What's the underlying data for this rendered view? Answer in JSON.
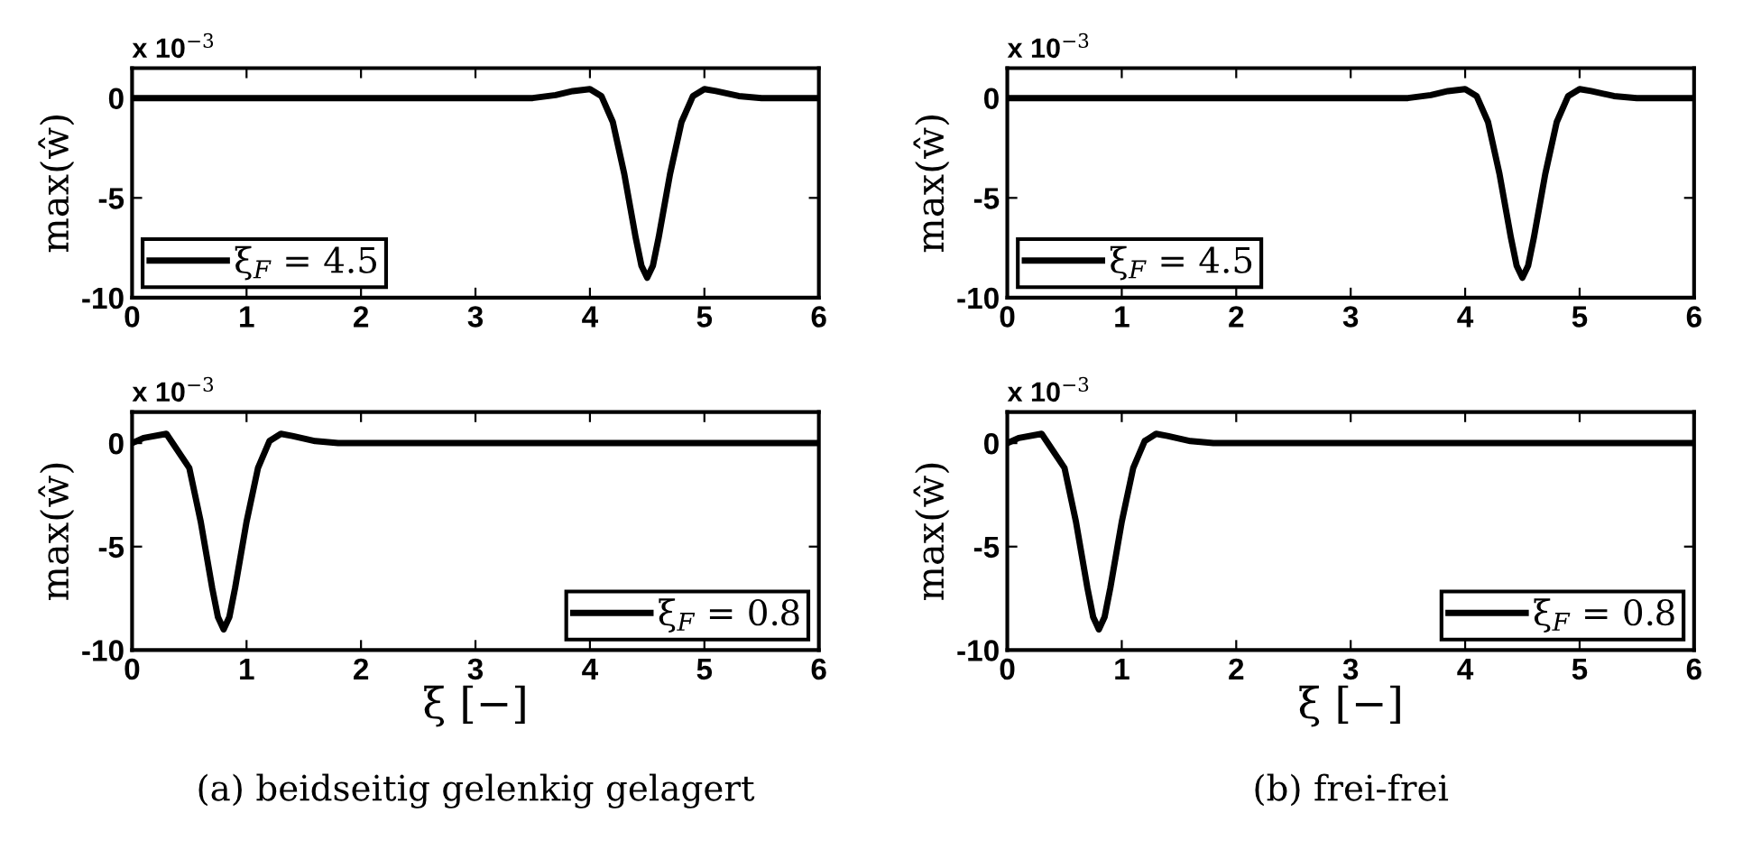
{
  "chart_data": [
    {
      "type": "line",
      "ylabel": "max(ŵ)",
      "xlim": [
        0,
        6
      ],
      "xticks": [
        0,
        1,
        2,
        3,
        4,
        5,
        6
      ],
      "ylim": [
        -10,
        1.5
      ],
      "yticks": [
        -10,
        -5,
        0
      ],
      "grid": false,
      "legend": "bottom left",
      "annotations": [
        "x 10$^{−3}$"
      ],
      "series": [
        {
          "name": "ξ$_{F}$ = 4.5",
          "color": "#000000",
          "x": [
            0,
            3.5,
            3.7,
            3.85,
            4.0,
            4.1,
            4.2,
            4.3,
            4.4,
            4.45,
            4.5,
            4.55,
            4.6,
            4.7,
            4.8,
            4.9,
            5.0,
            5.1,
            5.3,
            5.5,
            6
          ],
          "values": [
            0,
            0,
            0.15,
            0.35,
            0.45,
            0.1,
            -1.2,
            -3.8,
            -7.0,
            -8.4,
            -9,
            -8.4,
            -7.0,
            -3.8,
            -1.2,
            0.1,
            0.45,
            0.35,
            0.1,
            0,
            0
          ]
        }
      ]
    },
    {
      "type": "line",
      "ylabel": "max(ŵ)",
      "xlim": [
        0,
        6
      ],
      "xticks": [
        0,
        1,
        2,
        3,
        4,
        5,
        6
      ],
      "ylim": [
        -10,
        1.5
      ],
      "yticks": [
        -10,
        -5,
        0
      ],
      "grid": false,
      "legend": "bottom left",
      "annotations": [
        "x 10$^{−3}$"
      ],
      "series": [
        {
          "name": "ξ$_{F}$ = 4.5",
          "color": "#000000",
          "x": [
            0,
            3.5,
            3.7,
            3.85,
            4.0,
            4.1,
            4.2,
            4.3,
            4.4,
            4.45,
            4.5,
            4.55,
            4.6,
            4.7,
            4.8,
            4.9,
            5.0,
            5.1,
            5.3,
            5.5,
            6
          ],
          "values": [
            0,
            0,
            0.15,
            0.35,
            0.45,
            0.1,
            -1.2,
            -3.8,
            -7.0,
            -8.4,
            -9,
            -8.4,
            -7.0,
            -3.8,
            -1.2,
            0.1,
            0.45,
            0.35,
            0.1,
            0,
            0
          ]
        }
      ]
    },
    {
      "type": "line",
      "xlabel": "ξ [−]",
      "ylabel": "max(ŵ)",
      "xlim": [
        0,
        6
      ],
      "xticks": [
        0,
        1,
        2,
        3,
        4,
        5,
        6
      ],
      "ylim": [
        -10,
        1.5
      ],
      "yticks": [
        -10,
        -5,
        0
      ],
      "grid": false,
      "legend": "bottom right",
      "annotations": [
        "x 10$^{−3}$",
        "(a) beidseitig gelenkig gelagert"
      ],
      "series": [
        {
          "name": "ξ$_{F}$ = 0.8",
          "color": "#000000",
          "x": [
            0,
            0.1,
            0.3,
            0.5,
            0.6,
            0.7,
            0.75,
            0.8,
            0.85,
            0.9,
            1.0,
            1.1,
            1.2,
            1.3,
            1.4,
            1.6,
            1.8,
            6
          ],
          "values": [
            0,
            0.25,
            0.45,
            -1.2,
            -3.8,
            -7.0,
            -8.4,
            -9,
            -8.4,
            -7.0,
            -3.8,
            -1.2,
            0.1,
            0.45,
            0.35,
            0.1,
            0,
            0
          ]
        }
      ]
    },
    {
      "type": "line",
      "xlabel": "ξ [−]",
      "ylabel": "max(ŵ)",
      "xlim": [
        0,
        6
      ],
      "xticks": [
        0,
        1,
        2,
        3,
        4,
        5,
        6
      ],
      "ylim": [
        -10,
        1.5
      ],
      "yticks": [
        -10,
        -5,
        0
      ],
      "grid": false,
      "legend": "bottom right",
      "annotations": [
        "x 10$^{−3}$",
        "(b) frei-frei"
      ],
      "series": [
        {
          "name": "ξ$_{F}$ = 0.8",
          "color": "#000000",
          "x": [
            0,
            0.1,
            0.3,
            0.5,
            0.6,
            0.7,
            0.75,
            0.8,
            0.85,
            0.9,
            1.0,
            1.1,
            1.2,
            1.3,
            1.4,
            1.6,
            1.8,
            6
          ],
          "values": [
            0,
            0.25,
            0.45,
            -1.2,
            -3.8,
            -7.0,
            -8.4,
            -9,
            -8.4,
            -7.0,
            -3.8,
            -1.2,
            0.1,
            0.45,
            0.35,
            0.1,
            0,
            0
          ]
        }
      ]
    }
  ]
}
